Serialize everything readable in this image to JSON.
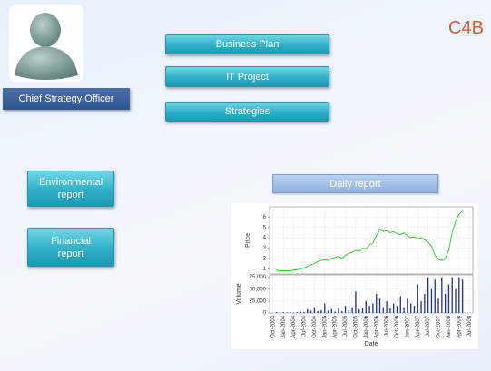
{
  "header": {
    "role": "Chief Strategy Officer",
    "logo": "C4B"
  },
  "menu": [
    "Business Plan",
    "IT Project",
    "Strategies"
  ],
  "reports": [
    "Environmental report",
    "Financial report"
  ],
  "daily_report": {
    "button": "Daily report",
    "chart_data": {
      "type": "line",
      "price_label": "Price",
      "volume_label": "Volume",
      "x_label": "Date",
      "x": [
        "2003-11",
        "2003-12",
        "2004-01",
        "2004-02",
        "2004-03",
        "2004-04",
        "2004-05",
        "2004-06",
        "2004-07",
        "2004-08",
        "2004-09",
        "2004-10",
        "2004-11",
        "2004-12",
        "2005-01",
        "2005-02",
        "2005-03",
        "2005-04",
        "2005-05",
        "2005-06",
        "2005-07",
        "2005-08",
        "2005-09",
        "2005-10",
        "2005-11",
        "2005-12",
        "2006-01",
        "2006-02",
        "2006-03",
        "2006-04",
        "2006-05",
        "2006-06",
        "2006-07",
        "2006-08",
        "2006-09",
        "2006-10",
        "2006-11",
        "2006-12",
        "2007-01",
        "2007-02",
        "2007-03",
        "2007-04",
        "2007-05",
        "2007-06",
        "2007-07",
        "2007-08",
        "2007-09",
        "2007-10",
        "2007-11",
        "2007-12",
        "2008-01",
        "2008-02",
        "2008-03",
        "2008-04",
        "2008-05"
      ],
      "price": {
        "color": "#22cc22",
        "values": [
          0.9,
          0.8,
          0.8,
          0.8,
          0.8,
          0.9,
          0.9,
          1.0,
          1.1,
          1.2,
          1.4,
          1.5,
          1.7,
          1.8,
          1.9,
          1.8,
          2.0,
          2.1,
          2.2,
          2.0,
          2.3,
          2.5,
          2.6,
          2.8,
          2.7,
          3.0,
          2.9,
          3.3,
          3.5,
          4.2,
          4.8,
          4.6,
          4.7,
          4.5,
          4.6,
          4.4,
          4.3,
          4.5,
          4.2,
          4.0,
          4.1,
          3.9,
          4.0,
          3.8,
          3.6,
          3.2,
          2.3,
          1.9,
          1.8,
          2.0,
          2.8,
          4.5,
          5.6,
          6.3,
          6.6
        ]
      },
      "volume": {
        "color": "#1f2fa8",
        "values": [
          2000,
          1000,
          1500,
          1000,
          2000,
          1000,
          1500,
          3000,
          2000,
          8000,
          5000,
          12000,
          4000,
          6000,
          20000,
          5000,
          8000,
          3000,
          10000,
          4000,
          15000,
          6000,
          12000,
          45000,
          8000,
          10000,
          25000,
          15000,
          20000,
          40000,
          30000,
          12000,
          25000,
          10000,
          20000,
          15000,
          35000,
          12000,
          30000,
          20000,
          15000,
          60000,
          25000,
          40000,
          75000,
          50000,
          70000,
          30000,
          75000,
          40000,
          60000,
          75000,
          50000,
          75000,
          70000
        ]
      },
      "xlim": [
        "2003-09",
        "2008-08"
      ],
      "xticks": [
        {
          "value": "2003-10",
          "label": "Oct-2003"
        },
        {
          "value": "2004-01",
          "label": "Jan-2004"
        },
        {
          "value": "2004-04",
          "label": "Apr-2004"
        },
        {
          "value": "2004-07",
          "label": "Jul-2004"
        },
        {
          "value": "2004-10",
          "label": "Oct-2004"
        },
        {
          "value": "2005-01",
          "label": "Jan-2005"
        },
        {
          "value": "2005-04",
          "label": "Apr-2005"
        },
        {
          "value": "2005-07",
          "label": "Jul-2005"
        },
        {
          "value": "2005-10",
          "label": "Oct-2005"
        },
        {
          "value": "2006-01",
          "label": "Jan-2006"
        },
        {
          "value": "2006-04",
          "label": "Apr-2006"
        },
        {
          "value": "2006-07",
          "label": "Jul-2006"
        },
        {
          "value": "2006-10",
          "label": "Oct-2006"
        },
        {
          "value": "2007-01",
          "label": "Jan-2007"
        },
        {
          "value": "2007-04",
          "label": "Apr-2007"
        },
        {
          "value": "2007-07",
          "label": "Jul-2007"
        },
        {
          "value": "2007-10",
          "label": "Oct-2007"
        },
        {
          "value": "2008-01",
          "label": "Jan-2008"
        },
        {
          "value": "2008-04",
          "label": "Apr-2008"
        },
        {
          "value": "2008-07",
          "label": "Jul-2008"
        }
      ],
      "ylim": [
        0.5,
        7
      ],
      "yticks": [
        1,
        2,
        3,
        4,
        5,
        6
      ],
      "y2lim": [
        0,
        80000
      ],
      "y2ticks": [
        0,
        {
          "value": 25000,
          "label": "25,000"
        },
        {
          "value": 50000,
          "label": "50,000"
        },
        {
          "value": 75000,
          "label": "75,000"
        }
      ],
      "grid": true
    }
  }
}
